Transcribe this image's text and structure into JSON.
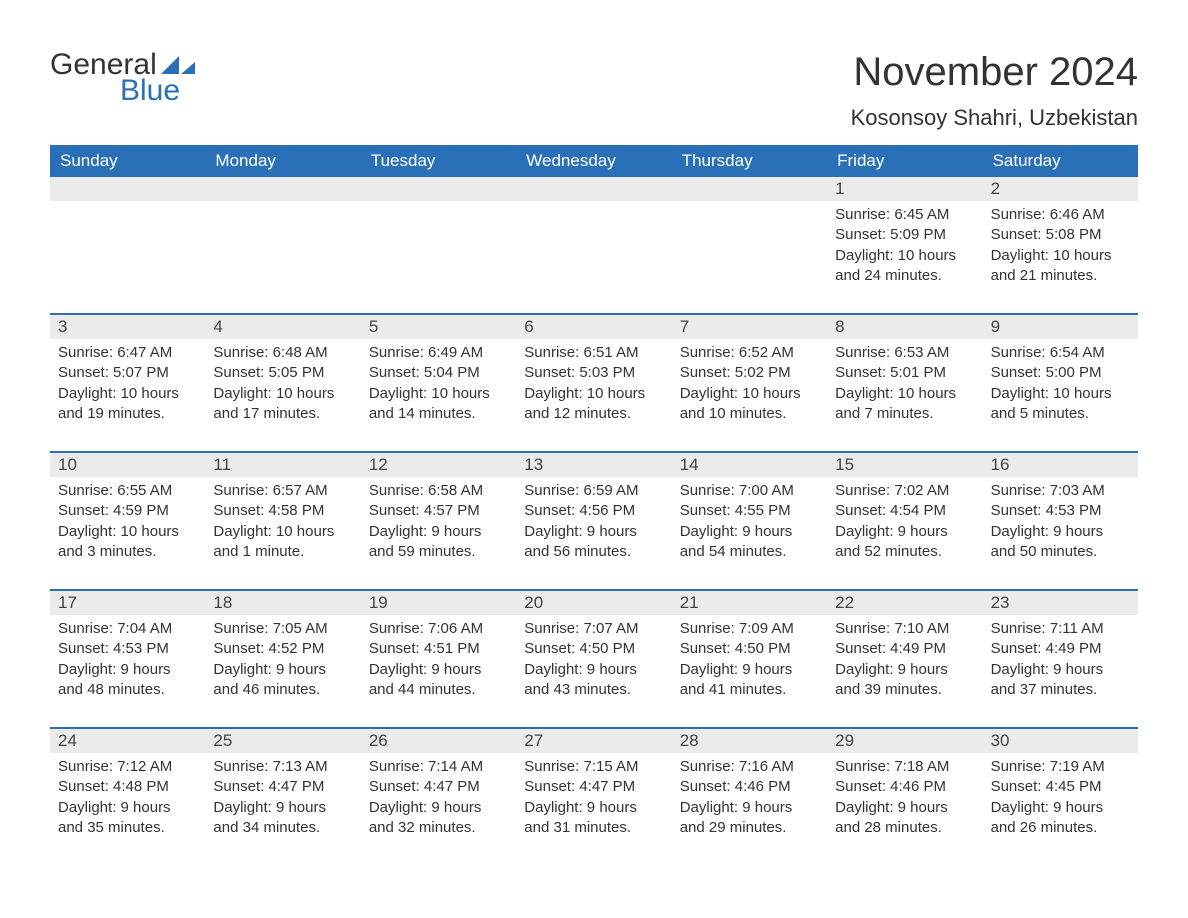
{
  "logo": {
    "text_general": "General",
    "text_blue": "Blue"
  },
  "title": "November 2024",
  "location": "Kosonsoy Shahri, Uzbekistan",
  "colors": {
    "header_bg": "#2a70b8",
    "header_text": "#ffffff",
    "daynum_bg": "#ebebeb",
    "border": "#2a70b8",
    "text": "#333333",
    "background": "#ffffff"
  },
  "typography": {
    "title_fontsize": 40,
    "location_fontsize": 22,
    "weekday_fontsize": 17,
    "daynum_fontsize": 17,
    "detail_fontsize": 15,
    "font_family": "Arial"
  },
  "weekdays": [
    "Sunday",
    "Monday",
    "Tuesday",
    "Wednesday",
    "Thursday",
    "Friday",
    "Saturday"
  ],
  "weeks": [
    [
      null,
      null,
      null,
      null,
      null,
      {
        "n": "1",
        "sunrise": "Sunrise: 6:45 AM",
        "sunset": "Sunset: 5:09 PM",
        "day1": "Daylight: 10 hours",
        "day2": "and 24 minutes."
      },
      {
        "n": "2",
        "sunrise": "Sunrise: 6:46 AM",
        "sunset": "Sunset: 5:08 PM",
        "day1": "Daylight: 10 hours",
        "day2": "and 21 minutes."
      }
    ],
    [
      {
        "n": "3",
        "sunrise": "Sunrise: 6:47 AM",
        "sunset": "Sunset: 5:07 PM",
        "day1": "Daylight: 10 hours",
        "day2": "and 19 minutes."
      },
      {
        "n": "4",
        "sunrise": "Sunrise: 6:48 AM",
        "sunset": "Sunset: 5:05 PM",
        "day1": "Daylight: 10 hours",
        "day2": "and 17 minutes."
      },
      {
        "n": "5",
        "sunrise": "Sunrise: 6:49 AM",
        "sunset": "Sunset: 5:04 PM",
        "day1": "Daylight: 10 hours",
        "day2": "and 14 minutes."
      },
      {
        "n": "6",
        "sunrise": "Sunrise: 6:51 AM",
        "sunset": "Sunset: 5:03 PM",
        "day1": "Daylight: 10 hours",
        "day2": "and 12 minutes."
      },
      {
        "n": "7",
        "sunrise": "Sunrise: 6:52 AM",
        "sunset": "Sunset: 5:02 PM",
        "day1": "Daylight: 10 hours",
        "day2": "and 10 minutes."
      },
      {
        "n": "8",
        "sunrise": "Sunrise: 6:53 AM",
        "sunset": "Sunset: 5:01 PM",
        "day1": "Daylight: 10 hours",
        "day2": "and 7 minutes."
      },
      {
        "n": "9",
        "sunrise": "Sunrise: 6:54 AM",
        "sunset": "Sunset: 5:00 PM",
        "day1": "Daylight: 10 hours",
        "day2": "and 5 minutes."
      }
    ],
    [
      {
        "n": "10",
        "sunrise": "Sunrise: 6:55 AM",
        "sunset": "Sunset: 4:59 PM",
        "day1": "Daylight: 10 hours",
        "day2": "and 3 minutes."
      },
      {
        "n": "11",
        "sunrise": "Sunrise: 6:57 AM",
        "sunset": "Sunset: 4:58 PM",
        "day1": "Daylight: 10 hours",
        "day2": "and 1 minute."
      },
      {
        "n": "12",
        "sunrise": "Sunrise: 6:58 AM",
        "sunset": "Sunset: 4:57 PM",
        "day1": "Daylight: 9 hours",
        "day2": "and 59 minutes."
      },
      {
        "n": "13",
        "sunrise": "Sunrise: 6:59 AM",
        "sunset": "Sunset: 4:56 PM",
        "day1": "Daylight: 9 hours",
        "day2": "and 56 minutes."
      },
      {
        "n": "14",
        "sunrise": "Sunrise: 7:00 AM",
        "sunset": "Sunset: 4:55 PM",
        "day1": "Daylight: 9 hours",
        "day2": "and 54 minutes."
      },
      {
        "n": "15",
        "sunrise": "Sunrise: 7:02 AM",
        "sunset": "Sunset: 4:54 PM",
        "day1": "Daylight: 9 hours",
        "day2": "and 52 minutes."
      },
      {
        "n": "16",
        "sunrise": "Sunrise: 7:03 AM",
        "sunset": "Sunset: 4:53 PM",
        "day1": "Daylight: 9 hours",
        "day2": "and 50 minutes."
      }
    ],
    [
      {
        "n": "17",
        "sunrise": "Sunrise: 7:04 AM",
        "sunset": "Sunset: 4:53 PM",
        "day1": "Daylight: 9 hours",
        "day2": "and 48 minutes."
      },
      {
        "n": "18",
        "sunrise": "Sunrise: 7:05 AM",
        "sunset": "Sunset: 4:52 PM",
        "day1": "Daylight: 9 hours",
        "day2": "and 46 minutes."
      },
      {
        "n": "19",
        "sunrise": "Sunrise: 7:06 AM",
        "sunset": "Sunset: 4:51 PM",
        "day1": "Daylight: 9 hours",
        "day2": "and 44 minutes."
      },
      {
        "n": "20",
        "sunrise": "Sunrise: 7:07 AM",
        "sunset": "Sunset: 4:50 PM",
        "day1": "Daylight: 9 hours",
        "day2": "and 43 minutes."
      },
      {
        "n": "21",
        "sunrise": "Sunrise: 7:09 AM",
        "sunset": "Sunset: 4:50 PM",
        "day1": "Daylight: 9 hours",
        "day2": "and 41 minutes."
      },
      {
        "n": "22",
        "sunrise": "Sunrise: 7:10 AM",
        "sunset": "Sunset: 4:49 PM",
        "day1": "Daylight: 9 hours",
        "day2": "and 39 minutes."
      },
      {
        "n": "23",
        "sunrise": "Sunrise: 7:11 AM",
        "sunset": "Sunset: 4:49 PM",
        "day1": "Daylight: 9 hours",
        "day2": "and 37 minutes."
      }
    ],
    [
      {
        "n": "24",
        "sunrise": "Sunrise: 7:12 AM",
        "sunset": "Sunset: 4:48 PM",
        "day1": "Daylight: 9 hours",
        "day2": "and 35 minutes."
      },
      {
        "n": "25",
        "sunrise": "Sunrise: 7:13 AM",
        "sunset": "Sunset: 4:47 PM",
        "day1": "Daylight: 9 hours",
        "day2": "and 34 minutes."
      },
      {
        "n": "26",
        "sunrise": "Sunrise: 7:14 AM",
        "sunset": "Sunset: 4:47 PM",
        "day1": "Daylight: 9 hours",
        "day2": "and 32 minutes."
      },
      {
        "n": "27",
        "sunrise": "Sunrise: 7:15 AM",
        "sunset": "Sunset: 4:47 PM",
        "day1": "Daylight: 9 hours",
        "day2": "and 31 minutes."
      },
      {
        "n": "28",
        "sunrise": "Sunrise: 7:16 AM",
        "sunset": "Sunset: 4:46 PM",
        "day1": "Daylight: 9 hours",
        "day2": "and 29 minutes."
      },
      {
        "n": "29",
        "sunrise": "Sunrise: 7:18 AM",
        "sunset": "Sunset: 4:46 PM",
        "day1": "Daylight: 9 hours",
        "day2": "and 28 minutes."
      },
      {
        "n": "30",
        "sunrise": "Sunrise: 7:19 AM",
        "sunset": "Sunset: 4:45 PM",
        "day1": "Daylight: 9 hours",
        "day2": "and 26 minutes."
      }
    ]
  ]
}
